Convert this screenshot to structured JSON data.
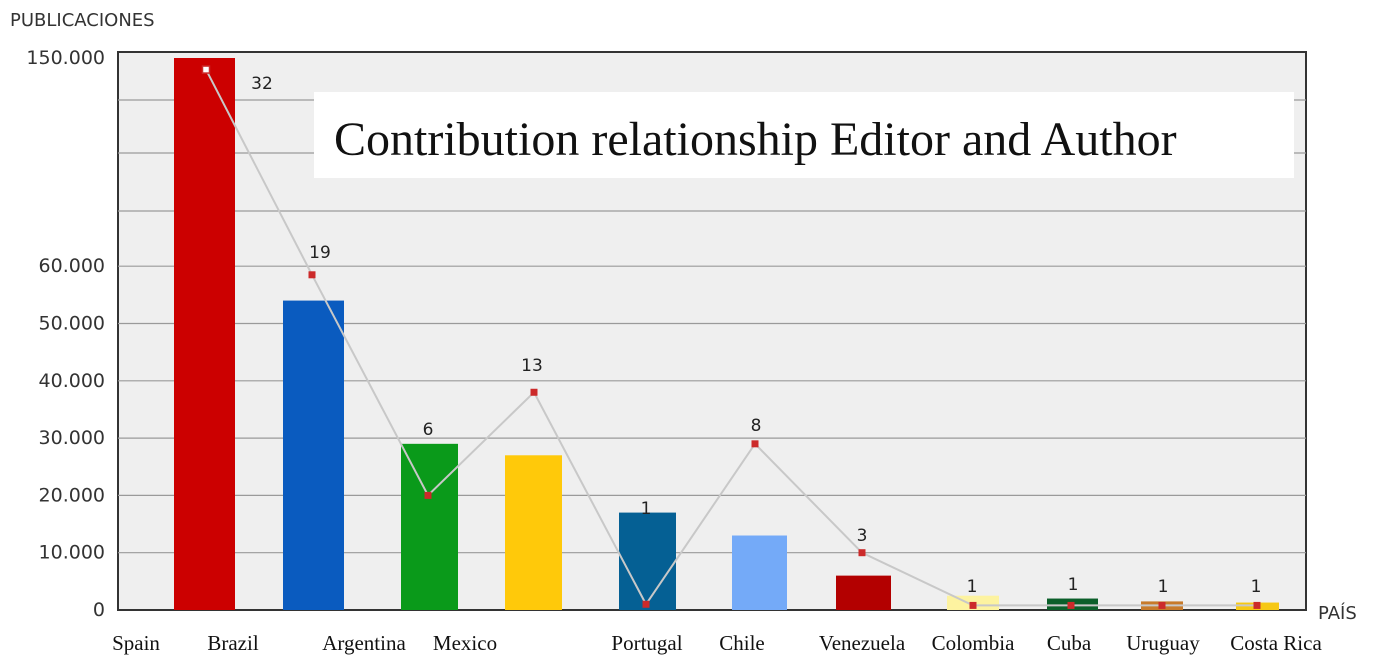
{
  "chart_data": {
    "type": "bar",
    "ylabel": "PUBLICACIONES",
    "xlabel": "PAÍS",
    "annotation": "Contribution relationship Editor and Author",
    "y_ticks": [
      "150.000",
      "60.000",
      "50.000",
      "40.000",
      "30.000",
      "20.000",
      "10.000",
      "0"
    ],
    "categories": [
      "Spain",
      "Brazil",
      "Argentina",
      "Mexico",
      "Portugal",
      "Chile",
      "Venezuela",
      "Colombia",
      "Cuba",
      "Uruguay",
      "Costa Rica"
    ],
    "bar_values": [
      150000,
      54000,
      29000,
      27000,
      17000,
      13000,
      6000,
      2500,
      2000,
      1500,
      1300
    ],
    "bar_colors": [
      "#cc0000",
      "#0a5bbf",
      "#0a9a1a",
      "#ffc90a",
      "#056094",
      "#74aaf8",
      "#b30000",
      "#fdf3a0",
      "#0b5f2a",
      "#c77a2a",
      "#f6c814"
    ],
    "line_labels": [
      "32",
      "19",
      "6",
      "13",
      "1",
      "8",
      "3",
      "1",
      "1",
      "1",
      "1"
    ],
    "line_point_values": [
      145000,
      58500,
      20000,
      38000,
      1000,
      29000,
      10000,
      800,
      800,
      800,
      800
    ],
    "line_color": "#c8c8c8",
    "marker_color": "#cc2a2a",
    "grid": true
  }
}
